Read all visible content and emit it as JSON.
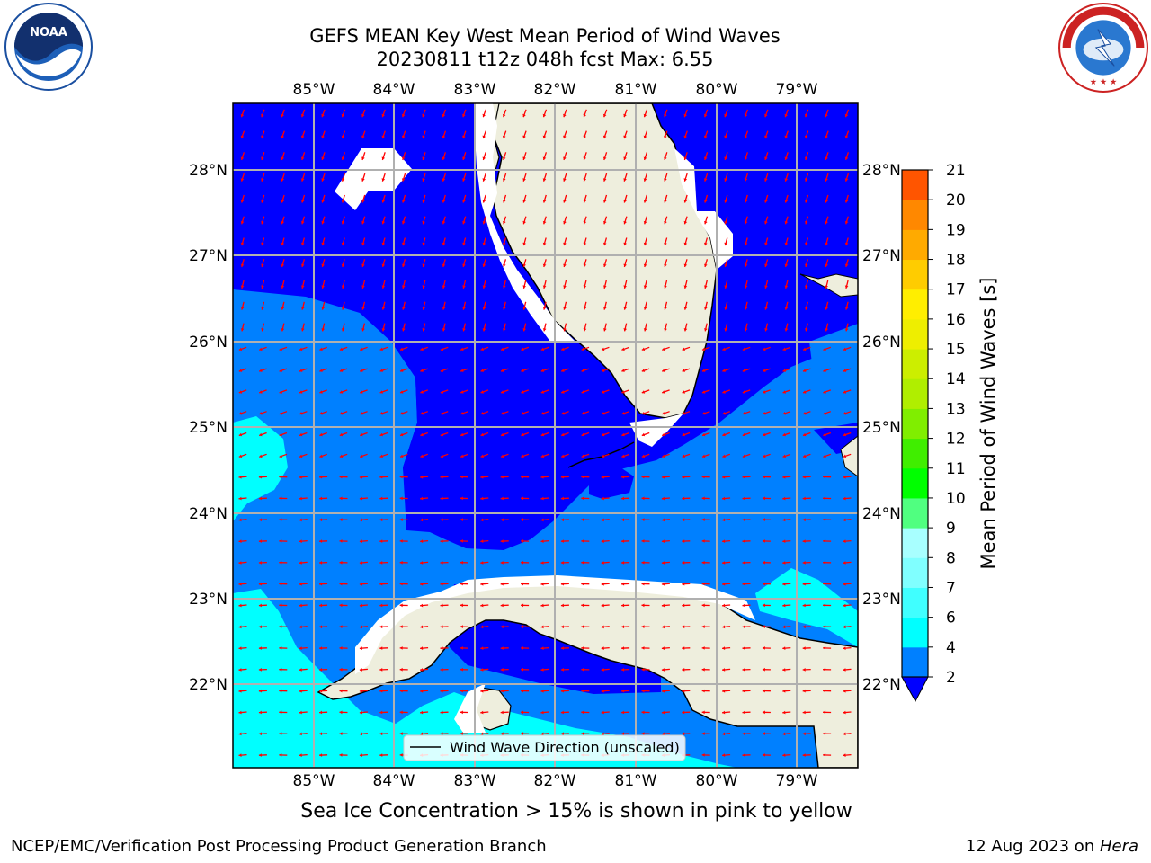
{
  "title": {
    "line1": "GEFS MEAN Key West Mean Period of Wind Waves",
    "line2": "20230811 t12z 048h fcst   Max: 6.55"
  },
  "map": {
    "lon_labels": [
      "85°W",
      "84°W",
      "83°W",
      "82°W",
      "81°W",
      "80°W",
      "79°W"
    ],
    "lat_labels": [
      "28°N",
      "27°N",
      "26°N",
      "25°N",
      "24°N",
      "23°N",
      "22°N"
    ],
    "legend_label": "Wind Wave Direction (unscaled)",
    "colors": {
      "ocean_dark": "#0000ff",
      "ocean_mid": "#0080ff",
      "ocean_light": "#00ffff",
      "land": "#eeeedd",
      "arrows": "#ff0000",
      "grid": "#b0b0b0"
    },
    "arrow_icon": "wind-direction-arrow-icon"
  },
  "colorbar": {
    "label": "Mean Period of Wind Waves [s]",
    "ticks": [
      "2",
      "4",
      "6",
      "7",
      "8",
      "9",
      "10",
      "11",
      "12",
      "13",
      "14",
      "15",
      "16",
      "17",
      "18",
      "19",
      "20",
      "21"
    ],
    "colors": [
      "#0080ff",
      "#00ffff",
      "#40ffff",
      "#80ffff",
      "#a8ffff",
      "#50ff80",
      "#00ff00",
      "#40ee00",
      "#80ee00",
      "#b0ee00",
      "#ccee00",
      "#eeee00",
      "#ffee00",
      "#ffcc00",
      "#ffaa00",
      "#ff8800",
      "#ff5500",
      "#ff2200",
      "#ff0000"
    ],
    "extend_color": "#0000ff"
  },
  "seaice_note": "Sea Ice Concentration > 15% is shown in pink to yellow",
  "footer": {
    "left": "NCEP/EMC/Verification Post Processing Product Generation Branch",
    "date": "12 Aug 2023 on ",
    "machine": "Hera"
  },
  "logos": {
    "noaa": "NOAA",
    "nws": "NATIONAL WEATHER SERVICE"
  }
}
